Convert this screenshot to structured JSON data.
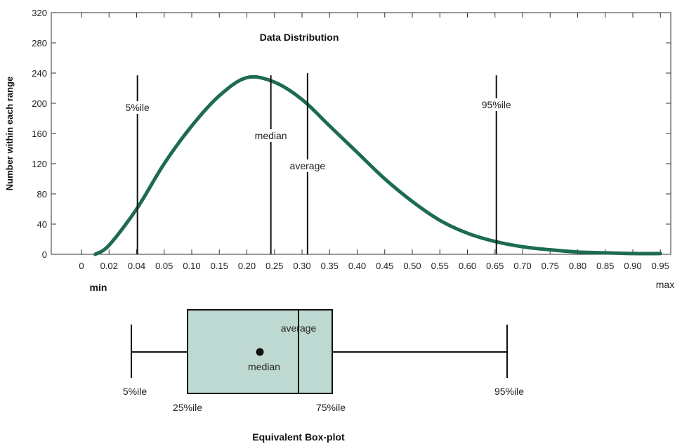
{
  "chart_data": [
    {
      "type": "line",
      "title": "Data Distribution",
      "ylabel": "Number within each range",
      "xlabel": "",
      "ylim": [
        0,
        320
      ],
      "yticks": [
        0,
        40,
        80,
        120,
        160,
        200,
        240,
        280,
        320
      ],
      "x_tick_labels": [
        "0",
        "0.02",
        "0.04",
        "0.05",
        "0.10",
        "0.15",
        "0.20",
        "0.25",
        "0.30",
        "0.35",
        "0.40",
        "0.45",
        "0.50",
        "0.55",
        "0.60",
        "0.65",
        "0.70",
        "0.75",
        "0.80",
        "0.85",
        "0.90",
        "0.95"
      ],
      "min_label": "min",
      "max_label": "max",
      "grid": false,
      "series": [
        {
          "color": "#1c6b52",
          "x_index": [
            0.5,
            1,
            2,
            3,
            4,
            5,
            6,
            7,
            8,
            9,
            10,
            11,
            12,
            13,
            14,
            15,
            16,
            17,
            18,
            19,
            20,
            21
          ],
          "y": [
            0,
            12,
            60,
            120,
            170,
            210,
            234,
            228,
            205,
            170,
            135,
            100,
            70,
            45,
            28,
            17,
            10,
            6,
            3,
            2,
            1,
            1
          ]
        }
      ],
      "markers": [
        {
          "label": "5%ile",
          "x_index": 2.03,
          "top": 237
        },
        {
          "label": "median",
          "x_index": 6.87,
          "top": 237
        },
        {
          "label": "average",
          "x_index": 8.2,
          "top": 240
        },
        {
          "label": "95%ile",
          "x_index": 15.05,
          "top": 237
        }
      ]
    },
    {
      "type": "boxplot",
      "title": "Equivalent Box-plot",
      "fill_color": "#bed9d1",
      "labels": {
        "p5": "5%ile",
        "p25": "25%ile",
        "median": "median",
        "average": "average",
        "p75": "75%ile",
        "p95": "95%ile"
      }
    }
  ]
}
